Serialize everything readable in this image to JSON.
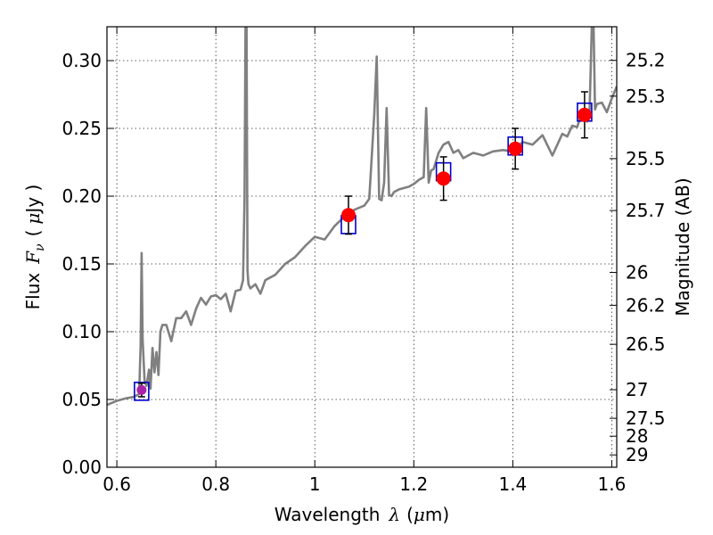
{
  "chart_data": {
    "type": "scatter",
    "xlabel_text": "Wavelength",
    "xlabel_symbol": "λ",
    "xlabel_unit_open": "(",
    "xlabel_unit_mu": "μ",
    "xlabel_unit_rest": "m)",
    "ylabel_text": "Flux",
    "ylabel_symbol": "F",
    "ylabel_sub": "ν",
    "ylabel_unit_open": "(",
    "ylabel_unit_mu": "μ",
    "ylabel_unit_rest": "Jy )",
    "y2label": "Magnitude (AB)",
    "xlim": [
      0.58,
      1.61
    ],
    "ylim": [
      0.0,
      0.325
    ],
    "grid": true,
    "x_ticks": [
      {
        "value": 0.6,
        "label": "0.6"
      },
      {
        "value": 0.8,
        "label": "0.8"
      },
      {
        "value": 1.0,
        "label": "1"
      },
      {
        "value": 1.2,
        "label": "1.2"
      },
      {
        "value": 1.4,
        "label": "1.4"
      },
      {
        "value": 1.6,
        "label": "1.6"
      }
    ],
    "y_ticks": [
      {
        "value": 0.0,
        "label": "0.00"
      },
      {
        "value": 0.05,
        "label": "0.05"
      },
      {
        "value": 0.1,
        "label": "0.10"
      },
      {
        "value": 0.15,
        "label": "0.15"
      },
      {
        "value": 0.2,
        "label": "0.20"
      },
      {
        "value": 0.25,
        "label": "0.25"
      },
      {
        "value": 0.3,
        "label": "0.30"
      }
    ],
    "y2_ticks": [
      {
        "flux": 0.3002,
        "label": "25.2"
      },
      {
        "flux": 0.2738,
        "label": "25.3"
      },
      {
        "flux": 0.2277,
        "label": "25.5"
      },
      {
        "flux": 0.1894,
        "label": "25.7"
      },
      {
        "flux": 0.1437,
        "label": "26"
      },
      {
        "flux": 0.1195,
        "label": "26.2"
      },
      {
        "flux": 0.0907,
        "label": "26.5"
      },
      {
        "flux": 0.0572,
        "label": "27"
      },
      {
        "flux": 0.0361,
        "label": "27.5"
      },
      {
        "flux": 0.0229,
        "label": "28"
      },
      {
        "flux": 0.0091,
        "label": "29"
      }
    ],
    "spectrum": {
      "color": "#808080",
      "x": [
        0.58,
        0.6,
        0.62,
        0.635,
        0.645,
        0.648,
        0.65,
        0.652,
        0.656,
        0.66,
        0.665,
        0.668,
        0.672,
        0.676,
        0.68,
        0.684,
        0.688,
        0.692,
        0.7,
        0.71,
        0.72,
        0.73,
        0.74,
        0.75,
        0.76,
        0.77,
        0.78,
        0.79,
        0.8,
        0.81,
        0.82,
        0.83,
        0.84,
        0.85,
        0.855,
        0.858,
        0.86,
        0.862,
        0.864,
        0.866,
        0.87,
        0.88,
        0.89,
        0.9,
        0.92,
        0.94,
        0.96,
        0.98,
        1.0,
        1.02,
        1.04,
        1.06,
        1.08,
        1.1,
        1.11,
        1.12,
        1.125,
        1.13,
        1.135,
        1.14,
        1.145,
        1.15,
        1.155,
        1.16,
        1.17,
        1.18,
        1.19,
        1.2,
        1.21,
        1.22,
        1.225,
        1.23,
        1.235,
        1.24,
        1.25,
        1.26,
        1.27,
        1.28,
        1.29,
        1.3,
        1.32,
        1.34,
        1.36,
        1.38,
        1.4,
        1.42,
        1.44,
        1.46,
        1.48,
        1.5,
        1.51,
        1.52,
        1.53,
        1.54,
        1.55,
        1.555,
        1.56,
        1.563,
        1.566,
        1.57,
        1.58,
        1.59,
        1.6,
        1.61
      ],
      "y": [
        0.046,
        0.049,
        0.051,
        0.052,
        0.054,
        0.09,
        0.158,
        0.095,
        0.064,
        0.06,
        0.072,
        0.058,
        0.088,
        0.07,
        0.085,
        0.068,
        0.1,
        0.105,
        0.105,
        0.093,
        0.11,
        0.11,
        0.115,
        0.105,
        0.117,
        0.125,
        0.12,
        0.126,
        0.127,
        0.124,
        0.128,
        0.115,
        0.13,
        0.131,
        0.138,
        0.2,
        0.33,
        0.33,
        0.145,
        0.135,
        0.132,
        0.135,
        0.128,
        0.138,
        0.142,
        0.15,
        0.155,
        0.163,
        0.17,
        0.168,
        0.178,
        0.185,
        0.19,
        0.193,
        0.198,
        0.26,
        0.303,
        0.198,
        0.197,
        0.21,
        0.265,
        0.201,
        0.2,
        0.203,
        0.205,
        0.206,
        0.207,
        0.209,
        0.212,
        0.214,
        0.265,
        0.21,
        0.219,
        0.22,
        0.232,
        0.238,
        0.24,
        0.232,
        0.234,
        0.228,
        0.232,
        0.23,
        0.233,
        0.234,
        0.233,
        0.24,
        0.238,
        0.245,
        0.23,
        0.246,
        0.244,
        0.252,
        0.251,
        0.262,
        0.255,
        0.262,
        0.33,
        0.33,
        0.264,
        0.268,
        0.269,
        0.262,
        0.272,
        0.281
      ]
    },
    "model_points": {
      "color": "#0000cc",
      "x": [
        0.65,
        1.068,
        1.26,
        1.405,
        1.545
      ],
      "y": [
        0.056,
        0.179,
        0.218,
        0.237,
        0.262
      ]
    },
    "observed_points": {
      "color": "#ff0000",
      "x": [
        0.65,
        1.068,
        1.26,
        1.405,
        1.545
      ],
      "y": [
        0.057,
        0.186,
        0.213,
        0.235,
        0.26
      ],
      "yerr": [
        0.005,
        0.014,
        0.016,
        0.015,
        0.017
      ]
    },
    "first_point_color": "#aa22aa"
  }
}
